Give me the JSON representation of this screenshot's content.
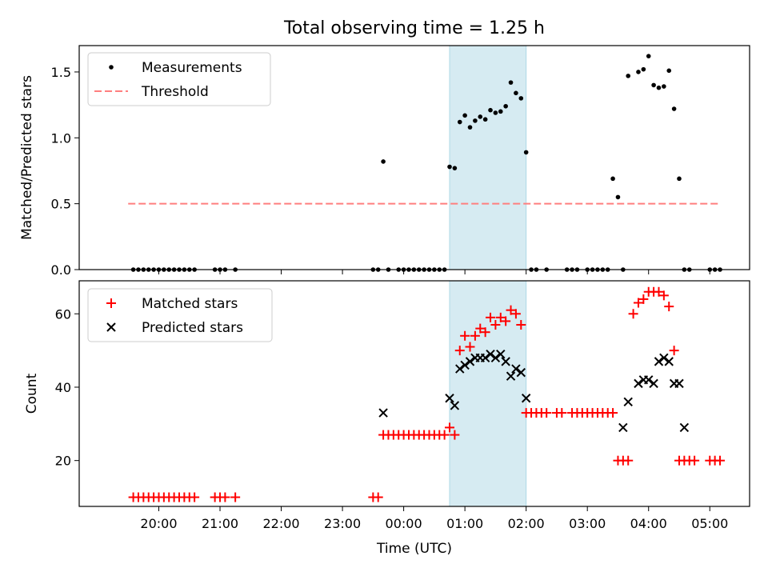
{
  "title": "Total observing time = 1.25 h",
  "xlabel": "Time (UTC)",
  "x_ticks": [
    "20:00",
    "21:00",
    "22:00",
    "23:00",
    "00:00",
    "01:00",
    "02:00",
    "03:00",
    "04:00",
    "05:00"
  ],
  "chart_data": [
    {
      "type": "scatter",
      "ylabel": "Matched/Predicted stars",
      "ylim": [
        0,
        1.7
      ],
      "xlim_hours": [
        18.7,
        29.65
      ],
      "y_ticks": [
        "0.0",
        "0.5",
        "1.0",
        "1.5"
      ],
      "y_tick_values": [
        0,
        0.5,
        1.0,
        1.5
      ],
      "highlight_span": {
        "x_start": "00:45",
        "x_end": "02:00",
        "color": "#add8e6"
      },
      "legend": {
        "placement": "upper left"
      },
      "series": [
        {
          "name": "Measurements",
          "color": "#000000",
          "marker": "dot",
          "x": [
            "19:35",
            "19:40",
            "19:45",
            "19:50",
            "19:55",
            "20:00",
            "20:05",
            "20:10",
            "20:15",
            "20:20",
            "20:25",
            "20:30",
            "20:35",
            "20:55",
            "21:00",
            "21:05",
            "21:15",
            "23:30",
            "23:35",
            "23:40",
            "23:45",
            "23:55",
            "00:00",
            "00:05",
            "00:10",
            "00:15",
            "00:20",
            "00:25",
            "00:30",
            "00:35",
            "00:40",
            "00:45",
            "00:50",
            "00:55",
            "01:00",
            "01:05",
            "01:10",
            "01:15",
            "01:20",
            "01:25",
            "01:30",
            "01:35",
            "01:40",
            "01:45",
            "01:50",
            "01:55",
            "02:00",
            "02:05",
            "02:10",
            "02:20",
            "02:40",
            "02:45",
            "02:50",
            "03:00",
            "03:05",
            "03:10",
            "03:15",
            "03:20",
            "03:25",
            "03:30",
            "03:35",
            "03:40",
            "03:50",
            "03:55",
            "04:00",
            "04:05",
            "04:10",
            "04:15",
            "04:20",
            "04:25",
            "04:30",
            "04:35",
            "04:40",
            "05:00",
            "05:05",
            "05:10"
          ],
          "y": [
            0,
            0,
            0,
            0,
            0,
            0,
            0,
            0,
            0,
            0,
            0,
            0,
            0,
            0,
            0,
            0,
            0,
            0,
            0,
            0.82,
            0,
            0,
            0,
            0,
            0,
            0,
            0,
            0,
            0,
            0,
            0,
            0.78,
            0.77,
            1.12,
            1.17,
            1.08,
            1.13,
            1.16,
            1.14,
            1.21,
            1.19,
            1.2,
            1.24,
            1.42,
            1.34,
            1.3,
            0.89,
            0,
            0,
            0,
            0,
            0,
            0,
            0,
            0,
            0,
            0,
            0,
            0.69,
            0.55,
            0,
            1.47,
            1.5,
            1.52,
            1.62,
            1.4,
            1.38,
            1.39,
            1.51,
            1.22,
            0.69,
            0,
            0,
            0,
            0,
            0
          ]
        },
        {
          "name": "Threshold",
          "color": "#ff7f7f",
          "style": "dashed",
          "x": [
            "19:30",
            "05:10"
          ],
          "y": [
            0.5,
            0.5
          ]
        }
      ]
    },
    {
      "type": "scatter",
      "ylabel": "Count",
      "ylim": [
        7.5,
        69
      ],
      "xlim_hours": [
        18.7,
        29.65
      ],
      "y_ticks": [
        "20",
        "40",
        "60"
      ],
      "y_tick_values": [
        20,
        40,
        60
      ],
      "highlight_span": {
        "x_start": "00:45",
        "x_end": "02:00",
        "color": "#add8e6"
      },
      "legend": {
        "placement": "upper left"
      },
      "series": [
        {
          "name": "Matched stars",
          "color": "#ff0000",
          "marker": "plus",
          "x": [
            "19:35",
            "19:40",
            "19:45",
            "19:50",
            "19:55",
            "20:00",
            "20:05",
            "20:10",
            "20:15",
            "20:20",
            "20:25",
            "20:30",
            "20:35",
            "20:55",
            "21:00",
            "21:05",
            "21:15",
            "23:30",
            "23:35",
            "23:40",
            "23:45",
            "23:50",
            "23:55",
            "00:00",
            "00:05",
            "00:10",
            "00:15",
            "00:20",
            "00:25",
            "00:30",
            "00:35",
            "00:40",
            "00:45",
            "00:50",
            "00:55",
            "01:00",
            "01:05",
            "01:10",
            "01:15",
            "01:20",
            "01:25",
            "01:30",
            "01:35",
            "01:40",
            "01:45",
            "01:50",
            "01:55",
            "02:00",
            "02:05",
            "02:10",
            "02:15",
            "02:20",
            "02:30",
            "02:35",
            "02:45",
            "02:50",
            "02:55",
            "03:00",
            "03:05",
            "03:10",
            "03:15",
            "03:20",
            "03:25",
            "03:30",
            "03:35",
            "03:40",
            "03:45",
            "03:50",
            "03:55",
            "04:00",
            "04:05",
            "04:10",
            "04:15",
            "04:20",
            "04:25",
            "04:30",
            "04:35",
            "04:40",
            "04:45",
            "05:00",
            "05:05",
            "05:10"
          ],
          "y": [
            10,
            10,
            10,
            10,
            10,
            10,
            10,
            10,
            10,
            10,
            10,
            10,
            10,
            10,
            10,
            10,
            10,
            10,
            10,
            27,
            27,
            27,
            27,
            27,
            27,
            27,
            27,
            27,
            27,
            27,
            27,
            27,
            29,
            27,
            50,
            54,
            51,
            54,
            56,
            55,
            59,
            57,
            59,
            58,
            61,
            60,
            57,
            33,
            33,
            33,
            33,
            33,
            33,
            33,
            33,
            33,
            33,
            33,
            33,
            33,
            33,
            33,
            33,
            20,
            20,
            20,
            60,
            63,
            64,
            66,
            66,
            66,
            65,
            62,
            50,
            20,
            20,
            20,
            20,
            20,
            20,
            20
          ]
        },
        {
          "name": "Predicted stars",
          "color": "#000000",
          "marker": "x",
          "x": [
            "23:40",
            "00:45",
            "00:50",
            "00:55",
            "01:00",
            "01:05",
            "01:10",
            "01:15",
            "01:20",
            "01:25",
            "01:30",
            "01:35",
            "01:40",
            "01:45",
            "01:50",
            "01:55",
            "02:00",
            "03:35",
            "03:40",
            "03:50",
            "03:55",
            "04:00",
            "04:05",
            "04:10",
            "04:15",
            "04:20",
            "04:25",
            "04:30",
            "04:35"
          ],
          "y": [
            33,
            37,
            35,
            45,
            46,
            47,
            48,
            48,
            48,
            49,
            48,
            49,
            47,
            43,
            45,
            44,
            37,
            29,
            36,
            41,
            42,
            42,
            41,
            47,
            48,
            47,
            41,
            41,
            29
          ]
        }
      ]
    }
  ]
}
